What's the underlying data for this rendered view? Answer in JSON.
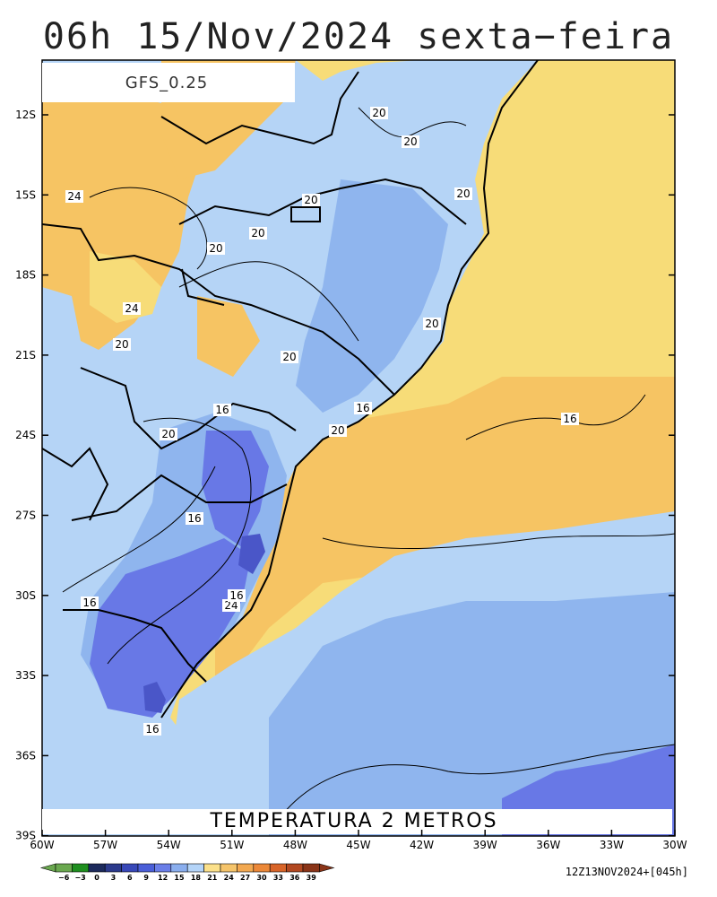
{
  "header": {
    "title": "06h 15/Nov/2024 sexta−feira"
  },
  "model_label": "GFS_0.25",
  "caption": "TEMPERATURA 2 METROS",
  "run_info": "12Z13NOV2024+[045h]",
  "axes": {
    "lat_labels": [
      "12S",
      "15S",
      "18S",
      "21S",
      "24S",
      "27S",
      "30S",
      "33S",
      "36S",
      "39S"
    ],
    "lon_labels": [
      "60W",
      "57W",
      "54W",
      "51W",
      "48W",
      "45W",
      "42W",
      "39W",
      "36W",
      "33W",
      "30W"
    ]
  },
  "contour_labels": [
    "20",
    "20",
    "20",
    "20",
    "20",
    "20",
    "20",
    "20",
    "20",
    "20",
    "20",
    "24",
    "24",
    "24",
    "16",
    "16",
    "16",
    "16",
    "16",
    "16",
    "16"
  ],
  "colorbar": {
    "labels": [
      "−6",
      "−3",
      "0",
      "3",
      "6",
      "9",
      "12",
      "15",
      "18",
      "21",
      "24",
      "27",
      "30",
      "33",
      "36",
      "39"
    ],
    "colors": [
      "#6aa84f",
      "#1f8f1f",
      "#1c2a5c",
      "#2b3a8c",
      "#3848b8",
      "#4a5ed8",
      "#6a7ee8",
      "#8aaeee",
      "#b4d4f8",
      "#fbe08a",
      "#f5c46a",
      "#f2a850",
      "#ec8838",
      "#d86428",
      "#b24820",
      "#8a3418"
    ]
  },
  "map_colors": {
    "ocean_warm": "#f7dc78",
    "ocean_orange": "#f6c463",
    "cool_light": "#b5d4f6",
    "cool_mid": "#8fb5ee",
    "cool_dark": "#6878e6",
    "cool_darker": "#4a56c8"
  }
}
